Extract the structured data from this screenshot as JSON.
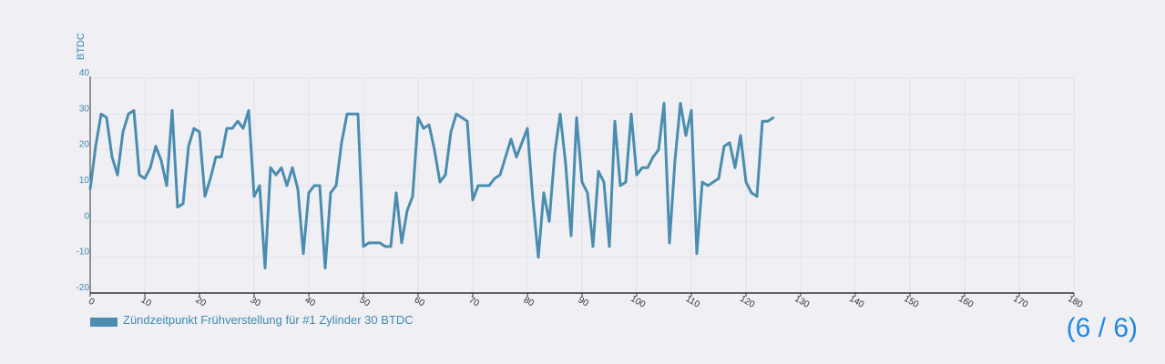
{
  "pager": {
    "text": "(6 / 6)"
  },
  "colors": {
    "series": "#4b8db0",
    "grid": "#e2e2ea",
    "axis": "#333333",
    "tick": "#3f8ab0",
    "accent": "#1e88e5"
  },
  "chart_data": {
    "type": "line",
    "ylabel": "BTDC",
    "xlim": [
      0,
      180
    ],
    "ylim": [
      -20,
      40
    ],
    "xticks": [
      0,
      10,
      20,
      30,
      40,
      50,
      60,
      70,
      80,
      90,
      100,
      110,
      120,
      130,
      140,
      150,
      160,
      170,
      180
    ],
    "yticks": [
      -20,
      -10,
      0,
      10,
      20,
      30,
      40
    ],
    "legend": "Zündzeitpunkt Frühverstellung für #1 Zylinder 30 BTDC",
    "series": [
      {
        "name": "Zündzeitpunkt Frühverstellung für #1 Zylinder 30 BTDC",
        "x": [
          0,
          1,
          2,
          3,
          4,
          5,
          6,
          7,
          8,
          9,
          10,
          11,
          12,
          13,
          14,
          15,
          16,
          17,
          18,
          19,
          20,
          21,
          22,
          23,
          24,
          25,
          26,
          27,
          28,
          29,
          30,
          31,
          32,
          33,
          34,
          35,
          36,
          37,
          38,
          39,
          40,
          41,
          42,
          43,
          44,
          45,
          46,
          47,
          48,
          49,
          50,
          51,
          52,
          53,
          54,
          55,
          56,
          57,
          58,
          59,
          60,
          61,
          62,
          63,
          64,
          65,
          66,
          67,
          68,
          69,
          70,
          71,
          72,
          73,
          74,
          75,
          76,
          77,
          78,
          79,
          80,
          81,
          82,
          83,
          84,
          85,
          86,
          87,
          88,
          89,
          90,
          91,
          92,
          93,
          94,
          95,
          96,
          97,
          98,
          99,
          100,
          101,
          102,
          103,
          104,
          105,
          106,
          107,
          108,
          109,
          110,
          111,
          112,
          113,
          114,
          115,
          116,
          117,
          118,
          119,
          120,
          121,
          122,
          123,
          124,
          125
        ],
        "y": [
          9,
          21,
          30,
          29,
          18,
          13,
          25,
          30,
          31,
          13,
          12,
          15,
          21,
          17,
          10,
          31,
          4,
          5,
          21,
          26,
          25,
          7,
          12,
          18,
          18,
          26,
          26,
          28,
          26,
          31,
          7,
          10,
          -13,
          15,
          13,
          15,
          10,
          15,
          9,
          -9,
          8,
          10,
          10,
          -13,
          8,
          10,
          22,
          30,
          30,
          30,
          -7,
          -6,
          -6,
          -6,
          -7,
          -7,
          8,
          -6,
          3,
          7,
          29,
          26,
          27,
          20,
          11,
          13,
          25,
          30,
          29,
          28,
          6,
          10,
          10,
          10,
          12,
          13,
          18,
          23,
          18,
          22,
          26,
          6,
          -10,
          8,
          0,
          19,
          30,
          16,
          -4,
          29,
          11,
          8,
          -7,
          14,
          11,
          -7,
          28,
          10,
          11,
          30,
          13,
          15,
          15,
          18,
          20,
          33,
          -6,
          17,
          33,
          24,
          31,
          -9,
          11,
          10,
          11,
          12,
          21,
          22,
          15,
          24,
          11,
          8,
          7,
          28,
          28,
          29
        ]
      }
    ]
  }
}
